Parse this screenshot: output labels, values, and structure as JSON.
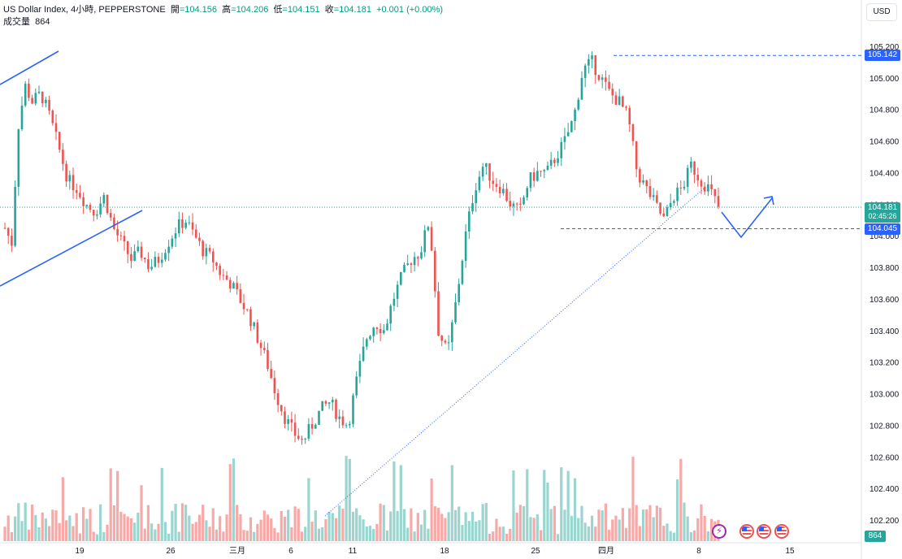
{
  "header": {
    "symbol": "US Dollar Index, 4小時, PEPPERSTONE",
    "open_label": "開",
    "open_value": "=104.156",
    "high_label": "高",
    "high_value": "=104.206",
    "low_label": "低",
    "low_value": "=104.151",
    "close_label": "收",
    "close_value": "=104.181",
    "change_value": "+0.001 (+0.00%)",
    "volume_label": "成交量",
    "volume_value": "864"
  },
  "currency_button": "USD",
  "price_tags": {
    "high_line": "105.142",
    "last_price": "104.181",
    "countdown": "02:45:26",
    "support_line": "104.045",
    "volume": "864"
  },
  "colors": {
    "up": "#26a69a",
    "down": "#ef5350",
    "up_volume": "#9ad6cf",
    "down_volume": "#f7a9a7",
    "drawing": "#2962ff",
    "axis_text": "#131722"
  },
  "chart_data": {
    "type": "candlestick",
    "symbol": "US Dollar Index",
    "timeframe": "4小時",
    "y_ticks": [
      "105.200",
      "105.000",
      "104.800",
      "104.600",
      "104.400",
      "104.200",
      "104.000",
      "103.800",
      "103.600",
      "103.400",
      "103.200",
      "103.000",
      "102.800",
      "102.600",
      "102.400",
      "102.200"
    ],
    "x_ticks": [
      "19",
      "26",
      "三月",
      "6",
      "11",
      "18",
      "25",
      "四月",
      "8",
      "15"
    ],
    "ylim": [
      102.15,
      105.25
    ],
    "last_close": 104.181,
    "horizontal_levels": [
      105.142,
      104.045
    ],
    "price_path": [
      [
        0,
        104.05
      ],
      [
        3,
        103.95
      ],
      [
        6,
        104.7
      ],
      [
        9,
        104.95
      ],
      [
        12,
        104.85
      ],
      [
        16,
        104.9
      ],
      [
        20,
        104.75
      ],
      [
        24,
        104.55
      ],
      [
        28,
        104.35
      ],
      [
        32,
        104.3
      ],
      [
        36,
        104.2
      ],
      [
        40,
        104.15
      ],
      [
        44,
        104.25
      ],
      [
        48,
        104.05
      ],
      [
        52,
        103.95
      ],
      [
        56,
        103.85
      ],
      [
        60,
        103.9
      ],
      [
        64,
        103.8
      ],
      [
        68,
        103.85
      ],
      [
        72,
        103.95
      ],
      [
        76,
        104.05
      ],
      [
        80,
        104.1
      ],
      [
        84,
        104.0
      ],
      [
        88,
        103.9
      ],
      [
        92,
        103.85
      ],
      [
        96,
        103.75
      ],
      [
        100,
        103.7
      ],
      [
        104,
        103.6
      ],
      [
        108,
        103.5
      ],
      [
        112,
        103.35
      ],
      [
        116,
        103.2
      ],
      [
        120,
        103.0
      ],
      [
        124,
        102.85
      ],
      [
        128,
        102.75
      ],
      [
        132,
        102.7
      ],
      [
        136,
        102.8
      ],
      [
        140,
        102.9
      ],
      [
        144,
        102.95
      ],
      [
        148,
        102.85
      ],
      [
        152,
        102.8
      ],
      [
        156,
        103.1
      ],
      [
        160,
        103.35
      ],
      [
        164,
        103.45
      ],
      [
        168,
        103.4
      ],
      [
        172,
        103.6
      ],
      [
        176,
        103.75
      ],
      [
        180,
        103.85
      ],
      [
        184,
        103.9
      ],
      [
        188,
        104.1
      ],
      [
        192,
        103.4
      ],
      [
        196,
        103.25
      ],
      [
        200,
        103.6
      ],
      [
        204,
        104.0
      ],
      [
        208,
        104.3
      ],
      [
        212,
        104.45
      ],
      [
        216,
        104.35
      ],
      [
        220,
        104.3
      ],
      [
        224,
        104.2
      ],
      [
        228,
        104.15
      ],
      [
        232,
        104.35
      ],
      [
        236,
        104.4
      ],
      [
        240,
        104.4
      ],
      [
        244,
        104.5
      ],
      [
        248,
        104.6
      ],
      [
        252,
        104.75
      ],
      [
        256,
        105.05
      ],
      [
        260,
        105.1
      ],
      [
        264,
        105.0
      ],
      [
        268,
        104.9
      ],
      [
        272,
        104.85
      ],
      [
        276,
        104.75
      ],
      [
        280,
        104.4
      ],
      [
        284,
        104.3
      ],
      [
        288,
        104.2
      ],
      [
        292,
        104.1
      ],
      [
        296,
        104.25
      ],
      [
        300,
        104.3
      ],
      [
        304,
        104.45
      ],
      [
        308,
        104.35
      ],
      [
        312,
        104.3
      ],
      [
        316,
        104.18
      ]
    ],
    "volume": {
      "label": "成交量",
      "last": 864
    },
    "drawings": {
      "up_channel_lines": 2,
      "dotted_trendline": true,
      "projection_arrow": "down-then-up"
    },
    "event_markers": [
      "lightning",
      "us-flag",
      "us-flag",
      "us-flag"
    ]
  }
}
